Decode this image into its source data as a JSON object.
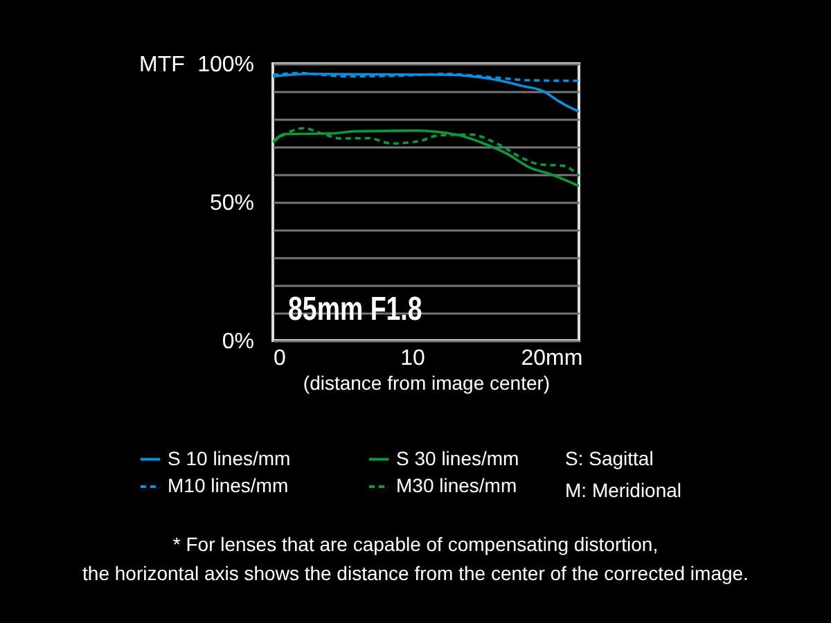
{
  "chart_data": {
    "type": "line",
    "ylabel": "MTF",
    "xlabel": "(distance from image center)",
    "annotations": [
      "85mm F1.8",
      "S: Sagittal",
      "M: Meridional",
      "* For lenses that are capable of compensating distortion,\nthe horizontal axis shows the distance from the center of the corrected image."
    ],
    "xlim": [
      0,
      22
    ],
    "xticks": [
      0,
      10,
      {
        "value": 20,
        "label": "20mm"
      }
    ],
    "ylim": [
      0,
      100
    ],
    "yticks": [
      {
        "value": 0,
        "label": "0%"
      },
      {
        "value": 10,
        "label": null
      },
      {
        "value": 20,
        "label": null
      },
      {
        "value": 30,
        "label": null
      },
      {
        "value": 40,
        "label": null
      },
      {
        "value": 50,
        "label": "50%"
      },
      {
        "value": 60,
        "label": null
      },
      {
        "value": 70,
        "label": null
      },
      {
        "value": 80,
        "label": null
      },
      {
        "value": 90,
        "label": null
      },
      {
        "value": 100,
        "label": "100%"
      }
    ],
    "grid": "y",
    "legend": "bottom",
    "marker": "none",
    "series": [
      {
        "name": "S 10 lines/mm",
        "color": "#0a8fdc",
        "line_style": "solid",
        "x": [
          0,
          2.5,
          12.5,
          15.9,
          17.9,
          19.5,
          20.5,
          21.4,
          22
        ],
        "values": [
          95.4,
          96.3,
          96,
          94.3,
          92,
          89.9,
          86.6,
          84.1,
          82.8
        ]
      },
      {
        "name": "M10 lines/mm",
        "color": "#0a8fdc",
        "line_style": "dashed",
        "x": [
          0,
          1.9,
          5.2,
          9.2,
          12.5,
          15.9,
          18.5,
          22
        ],
        "values": [
          95.9,
          96.6,
          95.4,
          95.7,
          96.3,
          95,
          94,
          93.8
        ]
      },
      {
        "name": "S 30 lines/mm",
        "color": "#0a9a3c",
        "line_style": "solid",
        "x": [
          0,
          0.9,
          4.2,
          5.9,
          10.2,
          13.2,
          14.9,
          16.9,
          18.5,
          19.9,
          22
        ],
        "values": [
          71.7,
          74.6,
          74.8,
          75.6,
          75.8,
          74.4,
          71.7,
          67.3,
          62.4,
          60.2,
          55.8
        ]
      },
      {
        "name": "M30 lines/mm",
        "color": "#0a9a3c",
        "line_style": "dashed",
        "x": [
          0,
          1.2,
          2.2,
          3.5,
          4.9,
          6.9,
          8.5,
          10.5,
          11.9,
          14.2,
          16.2,
          17.9,
          19.2,
          20.9,
          22
        ],
        "values": [
          71.7,
          75.4,
          76.7,
          74.8,
          73,
          73.1,
          71.2,
          72,
          74.1,
          74.4,
          70.9,
          66,
          63.6,
          63.1,
          59.4
        ]
      }
    ]
  }
}
